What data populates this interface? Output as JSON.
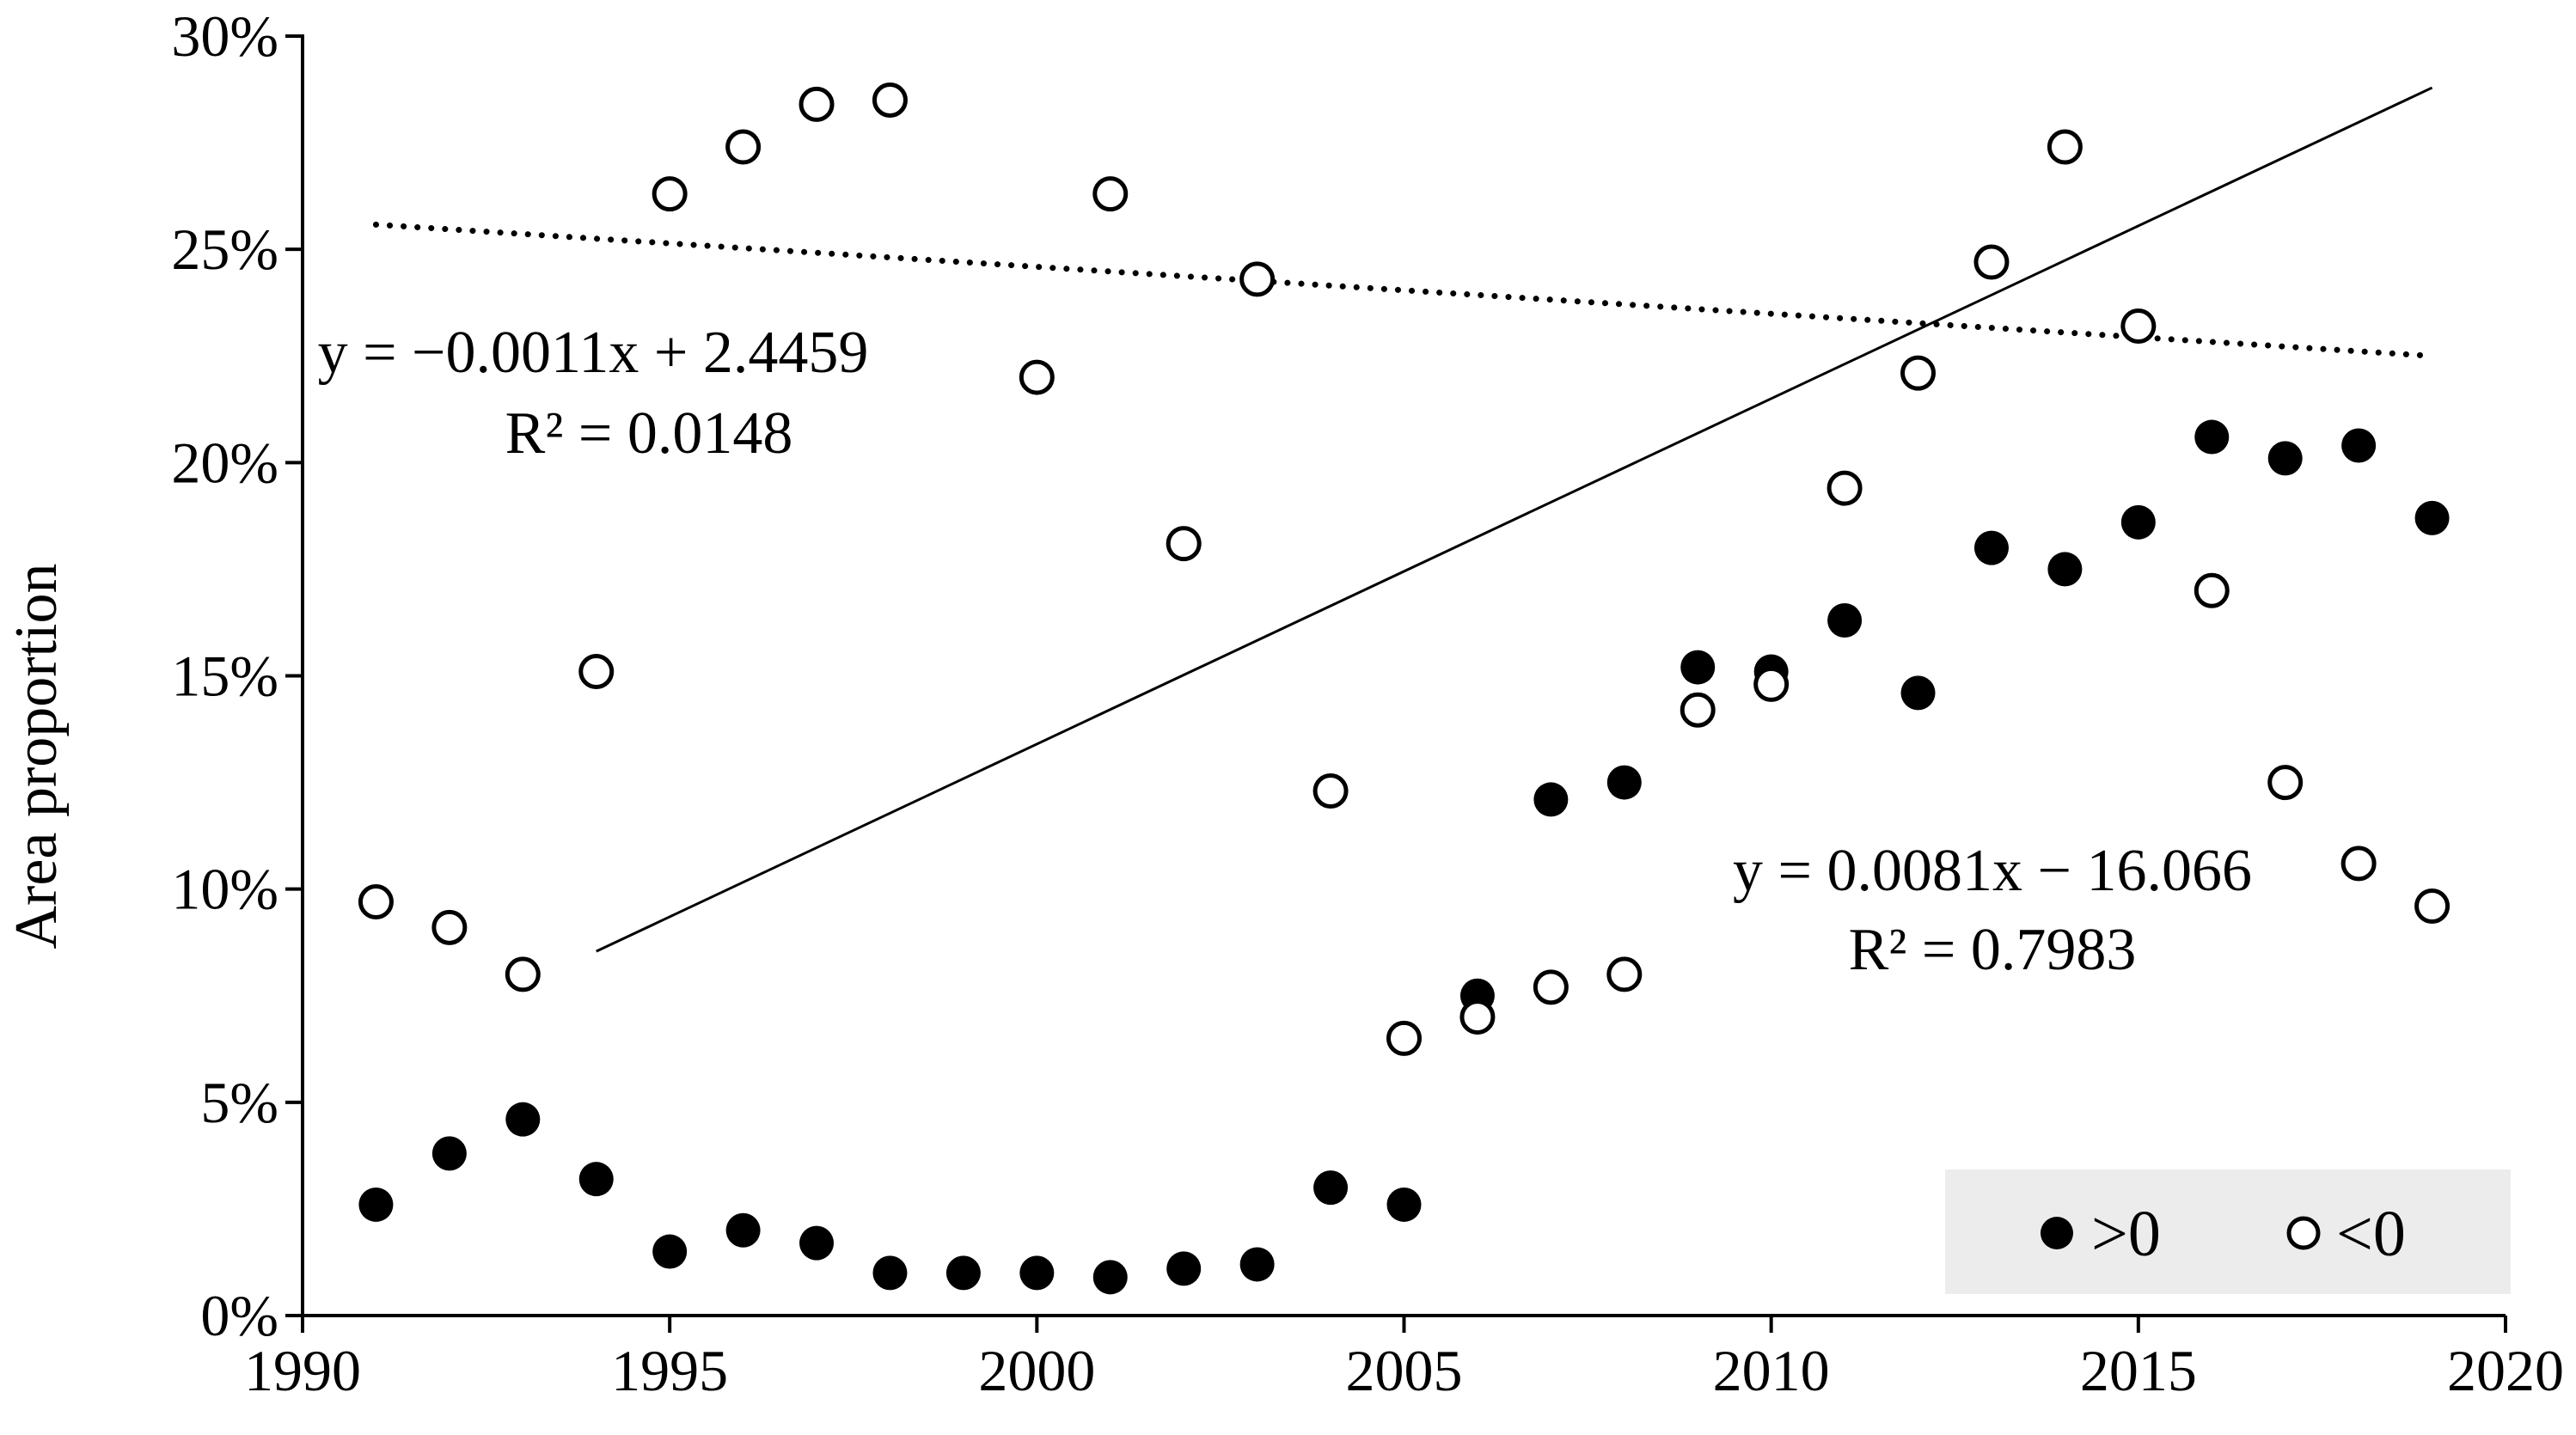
{
  "chart_data": {
    "type": "scatter",
    "title": "",
    "xlabel": "",
    "ylabel": "Area proportion",
    "xlim": [
      1990,
      2020
    ],
    "ylim": [
      0,
      0.3
    ],
    "x_ticks": [
      1990,
      1995,
      2000,
      2005,
      2010,
      2015,
      2020
    ],
    "x_tick_labels": [
      "1990",
      "1995",
      "2000",
      "2005",
      "2010",
      "2015",
      "2020"
    ],
    "y_ticks": [
      0,
      0.05,
      0.1,
      0.15,
      0.2,
      0.25,
      0.3
    ],
    "y_tick_labels": [
      "0%",
      "5%",
      "10%",
      "15%",
      "20%",
      "25%",
      "30%"
    ],
    "grid": false,
    "legend_position": "bottom-right",
    "series": [
      {
        "name": ">0",
        "marker": "filled-circle",
        "color": "#000000",
        "x": [
          1991,
          1992,
          1993,
          1994,
          1995,
          1996,
          1997,
          1998,
          1999,
          2000,
          2001,
          2002,
          2003,
          2004,
          2005,
          2006,
          2007,
          2008,
          2009,
          2010,
          2011,
          2012,
          2013,
          2014,
          2015,
          2016,
          2017,
          2018,
          2019
        ],
        "y": [
          0.026,
          0.038,
          0.046,
          0.032,
          0.015,
          0.02,
          0.017,
          0.01,
          0.01,
          0.01,
          0.009,
          0.011,
          0.012,
          0.03,
          0.026,
          0.075,
          0.121,
          0.125,
          0.152,
          0.151,
          0.163,
          0.146,
          0.18,
          0.175,
          0.186,
          0.206,
          0.201,
          0.204,
          0.187
        ]
      },
      {
        "name": "<0",
        "marker": "open-circle",
        "color": "#000000",
        "x": [
          1991,
          1992,
          1993,
          1994,
          1995,
          1996,
          1997,
          1998,
          2000,
          2001,
          2002,
          2003,
          2004,
          2005,
          2006,
          2007,
          2008,
          2009,
          2010,
          2011,
          2012,
          2013,
          2014,
          2015,
          2016,
          2017,
          2018,
          2019
        ],
        "y": [
          0.097,
          0.091,
          0.08,
          0.151,
          0.263,
          0.274,
          0.284,
          0.285,
          0.22,
          0.263,
          0.181,
          0.243,
          0.123,
          0.065,
          0.07,
          0.077,
          0.08,
          0.142,
          0.148,
          0.194,
          0.221,
          0.247,
          0.274,
          0.232,
          0.17,
          0.125,
          0.106,
          0.096
        ]
      }
    ],
    "trendlines": [
      {
        "series": ">0",
        "style": "solid",
        "slope": 0.0081,
        "intercept": -16.066,
        "x_range": [
          1994,
          2019
        ],
        "equation": "y = 0.0081x − 16.066",
        "r2": "R² = 0.7983"
      },
      {
        "series": "<0",
        "style": "dotted",
        "slope": -0.0011,
        "intercept": 2.4459,
        "x_range": [
          1991,
          2019
        ],
        "equation": "y = −0.0011x + 2.4459",
        "r2": "R² = 0.0148"
      }
    ]
  }
}
